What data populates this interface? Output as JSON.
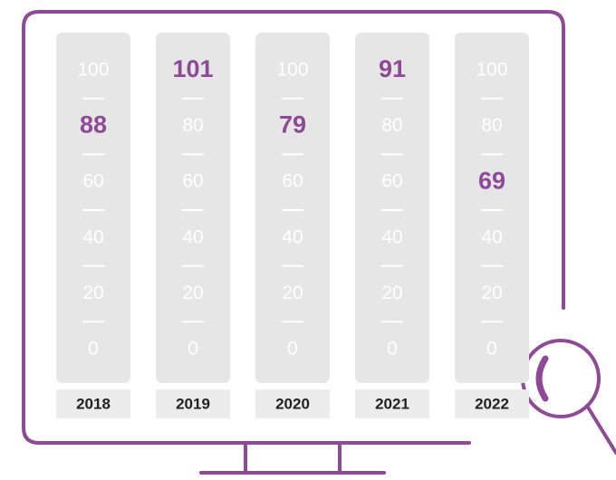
{
  "chart_data": {
    "type": "scale-columns",
    "categories": [
      "2018",
      "2019",
      "2020",
      "2021",
      "2022"
    ],
    "values": [
      88,
      101,
      79,
      91,
      69
    ],
    "color": "#8e4a97",
    "ylim": [
      0,
      100
    ],
    "yticks": [
      0,
      20,
      40,
      60,
      80,
      100
    ]
  }
}
